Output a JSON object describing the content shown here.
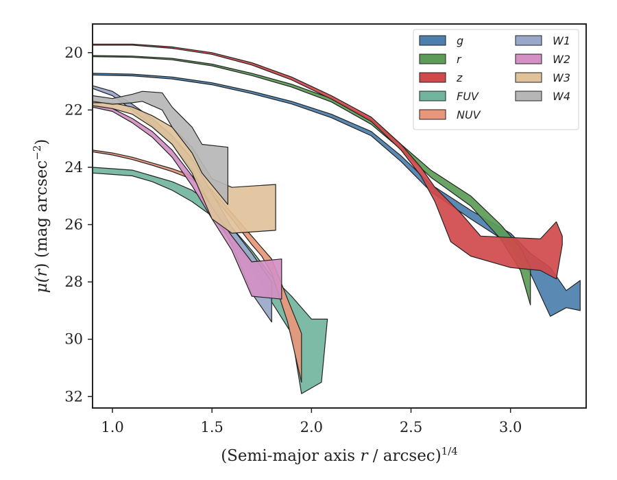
{
  "chart_data": {
    "type": "area",
    "xlabel_main": "(Semi-major axis ",
    "xlabel_var": "r",
    "xlabel_rest": " / arcsec)",
    "xlabel_sup": "1/4",
    "ylabel_main": "μ(",
    "ylabel_var": "r",
    "ylabel_rest": ") (mag arcsec",
    "ylabel_sup": "−2",
    "ylabel_close": ")",
    "xlim": [
      0.9,
      3.38
    ],
    "ylim": [
      32.4,
      19.0
    ],
    "y_inverted": true,
    "x_ticks": [
      1.0,
      1.5,
      2.0,
      2.5,
      3.0
    ],
    "x_tick_labels": [
      "1.0",
      "1.5",
      "2.0",
      "2.5",
      "3.0"
    ],
    "y_ticks": [
      20,
      22,
      24,
      26,
      28,
      30,
      32
    ],
    "y_tick_labels": [
      "20",
      "22",
      "24",
      "26",
      "28",
      "30",
      "32"
    ],
    "grid": false,
    "legend_position": "top-right",
    "legend_columns": 2,
    "series": [
      {
        "name": "g",
        "color": "#4c7fae",
        "upper": [
          [
            0.9,
            20.72
          ],
          [
            1.1,
            20.75
          ],
          [
            1.3,
            20.85
          ],
          [
            1.5,
            21.05
          ],
          [
            1.7,
            21.35
          ],
          [
            1.9,
            21.7
          ],
          [
            2.1,
            22.15
          ],
          [
            2.3,
            22.75
          ],
          [
            2.45,
            23.6
          ],
          [
            2.6,
            24.6
          ],
          [
            2.8,
            25.5
          ],
          [
            3.0,
            26.3
          ],
          [
            3.1,
            27.0
          ],
          [
            3.2,
            27.5
          ],
          [
            3.28,
            28.3
          ],
          [
            3.35,
            27.95
          ]
        ],
        "lower": [
          [
            0.9,
            20.78
          ],
          [
            1.1,
            20.81
          ],
          [
            1.3,
            20.92
          ],
          [
            1.5,
            21.12
          ],
          [
            1.7,
            21.43
          ],
          [
            1.9,
            21.79
          ],
          [
            2.1,
            22.27
          ],
          [
            2.3,
            22.9
          ],
          [
            2.45,
            23.8
          ],
          [
            2.6,
            24.85
          ],
          [
            2.8,
            25.8
          ],
          [
            3.0,
            26.7
          ],
          [
            3.1,
            27.7
          ],
          [
            3.2,
            29.2
          ],
          [
            3.28,
            28.9
          ],
          [
            3.35,
            29.0
          ]
        ]
      },
      {
        "name": "r",
        "color": "#5c9c58",
        "upper": [
          [
            0.9,
            20.1
          ],
          [
            1.1,
            20.12
          ],
          [
            1.3,
            20.2
          ],
          [
            1.5,
            20.4
          ],
          [
            1.7,
            20.72
          ],
          [
            1.9,
            21.1
          ],
          [
            2.1,
            21.6
          ],
          [
            2.3,
            22.35
          ],
          [
            2.45,
            23.2
          ],
          [
            2.6,
            24.1
          ],
          [
            2.8,
            25.0
          ],
          [
            2.95,
            26.0
          ],
          [
            3.05,
            26.8
          ],
          [
            3.1,
            27.5
          ]
        ],
        "lower": [
          [
            0.9,
            20.14
          ],
          [
            1.1,
            20.16
          ],
          [
            1.3,
            20.25
          ],
          [
            1.5,
            20.46
          ],
          [
            1.7,
            20.8
          ],
          [
            1.9,
            21.2
          ],
          [
            2.1,
            21.72
          ],
          [
            2.3,
            22.5
          ],
          [
            2.45,
            23.38
          ],
          [
            2.6,
            24.35
          ],
          [
            2.8,
            25.35
          ],
          [
            2.95,
            26.5
          ],
          [
            3.05,
            27.6
          ],
          [
            3.1,
            28.8
          ]
        ]
      },
      {
        "name": "z",
        "color": "#d04a4b",
        "upper": [
          [
            0.9,
            19.7
          ],
          [
            1.1,
            19.7
          ],
          [
            1.3,
            19.8
          ],
          [
            1.5,
            20.0
          ],
          [
            1.7,
            20.35
          ],
          [
            1.9,
            20.85
          ],
          [
            2.1,
            21.5
          ],
          [
            2.3,
            22.25
          ],
          [
            2.45,
            23.2
          ],
          [
            2.55,
            24.0
          ],
          [
            2.62,
            24.7
          ],
          [
            2.75,
            25.6
          ],
          [
            2.85,
            26.4
          ],
          [
            3.0,
            26.45
          ],
          [
            3.15,
            26.5
          ],
          [
            3.23,
            25.9
          ],
          [
            3.26,
            26.4
          ]
        ],
        "lower": [
          [
            0.9,
            19.74
          ],
          [
            1.1,
            19.74
          ],
          [
            1.3,
            19.85
          ],
          [
            1.5,
            20.06
          ],
          [
            1.7,
            20.43
          ],
          [
            1.9,
            20.95
          ],
          [
            2.1,
            21.62
          ],
          [
            2.3,
            22.4
          ],
          [
            2.45,
            23.4
          ],
          [
            2.55,
            24.3
          ],
          [
            2.62,
            25.2
          ],
          [
            2.7,
            26.6
          ],
          [
            2.8,
            27.1
          ],
          [
            3.0,
            27.5
          ],
          [
            3.15,
            27.6
          ],
          [
            3.23,
            27.9
          ],
          [
            3.26,
            26.7
          ]
        ]
      },
      {
        "name": "FUV",
        "color": "#72b59f",
        "upper": [
          [
            0.9,
            24.0
          ],
          [
            1.0,
            24.05
          ],
          [
            1.1,
            24.1
          ],
          [
            1.2,
            24.3
          ],
          [
            1.3,
            24.5
          ],
          [
            1.4,
            24.8
          ],
          [
            1.5,
            25.3
          ],
          [
            1.6,
            26.1
          ],
          [
            1.7,
            26.9
          ],
          [
            1.8,
            27.8
          ],
          [
            1.9,
            28.5
          ],
          [
            2.0,
            29.3
          ],
          [
            2.08,
            29.3
          ]
        ],
        "lower": [
          [
            0.9,
            24.2
          ],
          [
            1.0,
            24.25
          ],
          [
            1.1,
            24.3
          ],
          [
            1.2,
            24.5
          ],
          [
            1.3,
            24.8
          ],
          [
            1.4,
            25.2
          ],
          [
            1.5,
            25.7
          ],
          [
            1.6,
            26.6
          ],
          [
            1.7,
            27.5
          ],
          [
            1.8,
            28.7
          ],
          [
            1.9,
            29.8
          ],
          [
            1.95,
            31.9
          ],
          [
            2.05,
            31.5
          ]
        ]
      },
      {
        "name": "NUV",
        "color": "#e8977a",
        "upper": [
          [
            0.9,
            23.4
          ],
          [
            1.0,
            23.5
          ],
          [
            1.1,
            23.65
          ],
          [
            1.2,
            23.85
          ],
          [
            1.3,
            24.05
          ],
          [
            1.4,
            24.3
          ],
          [
            1.5,
            24.8
          ],
          [
            1.6,
            25.6
          ],
          [
            1.7,
            26.4
          ],
          [
            1.75,
            26.8
          ],
          [
            1.8,
            27.2
          ],
          [
            1.88,
            28.6
          ],
          [
            1.95,
            29.8
          ]
        ],
        "lower": [
          [
            0.9,
            23.46
          ],
          [
            1.0,
            23.57
          ],
          [
            1.1,
            23.73
          ],
          [
            1.2,
            23.93
          ],
          [
            1.3,
            24.15
          ],
          [
            1.4,
            24.42
          ],
          [
            1.5,
            24.95
          ],
          [
            1.6,
            25.8
          ],
          [
            1.7,
            26.7
          ],
          [
            1.75,
            27.1
          ],
          [
            1.8,
            27.7
          ],
          [
            1.88,
            29.4
          ],
          [
            1.95,
            31.5
          ]
        ]
      },
      {
        "name": "W1",
        "color": "#99a8c9",
        "upper": [
          [
            0.9,
            21.15
          ],
          [
            1.0,
            21.35
          ],
          [
            1.1,
            21.8
          ],
          [
            1.2,
            22.3
          ],
          [
            1.3,
            22.9
          ],
          [
            1.4,
            23.7
          ],
          [
            1.5,
            24.9
          ],
          [
            1.6,
            26.1
          ],
          [
            1.7,
            27.0
          ],
          [
            1.8,
            28.0
          ]
        ],
        "lower": [
          [
            0.9,
            21.25
          ],
          [
            1.0,
            21.5
          ],
          [
            1.1,
            22.0
          ],
          [
            1.2,
            22.55
          ],
          [
            1.3,
            23.2
          ],
          [
            1.4,
            24.1
          ],
          [
            1.5,
            25.4
          ],
          [
            1.6,
            26.7
          ],
          [
            1.7,
            28.4
          ],
          [
            1.8,
            29.4
          ]
        ]
      },
      {
        "name": "W2",
        "color": "#d490c4",
        "upper": [
          [
            0.9,
            21.8
          ],
          [
            1.0,
            21.95
          ],
          [
            1.1,
            22.3
          ],
          [
            1.2,
            22.75
          ],
          [
            1.3,
            23.4
          ],
          [
            1.4,
            24.3
          ],
          [
            1.5,
            25.4
          ],
          [
            1.6,
            26.4
          ],
          [
            1.7,
            27.3
          ],
          [
            1.85,
            27.2
          ]
        ],
        "lower": [
          [
            0.9,
            21.9
          ],
          [
            1.0,
            22.05
          ],
          [
            1.1,
            22.45
          ],
          [
            1.2,
            22.95
          ],
          [
            1.3,
            23.65
          ],
          [
            1.4,
            24.65
          ],
          [
            1.5,
            25.8
          ],
          [
            1.6,
            26.9
          ],
          [
            1.7,
            28.5
          ],
          [
            1.85,
            28.6
          ]
        ]
      },
      {
        "name": "W3",
        "color": "#dfc29a",
        "upper": [
          [
            0.9,
            21.75
          ],
          [
            1.0,
            21.75
          ],
          [
            1.1,
            21.9
          ],
          [
            1.2,
            22.2
          ],
          [
            1.3,
            22.6
          ],
          [
            1.4,
            23.3
          ],
          [
            1.5,
            24.4
          ],
          [
            1.6,
            24.7
          ],
          [
            1.82,
            24.6
          ]
        ],
        "lower": [
          [
            0.9,
            21.85
          ],
          [
            1.0,
            21.95
          ],
          [
            1.1,
            22.15
          ],
          [
            1.2,
            22.6
          ],
          [
            1.3,
            23.2
          ],
          [
            1.4,
            24.2
          ],
          [
            1.5,
            25.8
          ],
          [
            1.6,
            26.3
          ],
          [
            1.82,
            26.2
          ]
        ]
      },
      {
        "name": "W4",
        "color": "#b6b6b6",
        "upper": [
          [
            0.9,
            21.5
          ],
          [
            1.0,
            21.6
          ],
          [
            1.1,
            21.45
          ],
          [
            1.15,
            21.35
          ],
          [
            1.25,
            21.4
          ],
          [
            1.3,
            21.9
          ],
          [
            1.4,
            22.6
          ],
          [
            1.45,
            23.2
          ],
          [
            1.58,
            23.3
          ]
        ],
        "lower": [
          [
            0.9,
            21.7
          ],
          [
            1.0,
            21.8
          ],
          [
            1.1,
            21.75
          ],
          [
            1.15,
            21.7
          ],
          [
            1.25,
            22.0
          ],
          [
            1.3,
            22.6
          ],
          [
            1.4,
            23.5
          ],
          [
            1.45,
            24.2
          ],
          [
            1.58,
            25.3
          ]
        ]
      }
    ]
  }
}
